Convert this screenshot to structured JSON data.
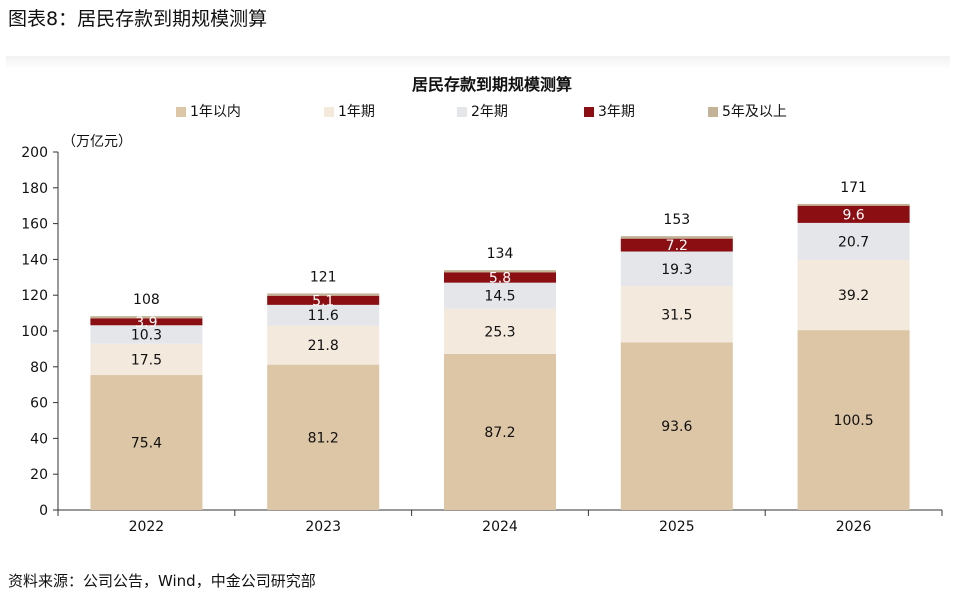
{
  "caption": "图表8：居民存款到期规模测算",
  "source": "资料来源：公司公告，Wind，中金公司研究部",
  "chart_data": {
    "type": "bar",
    "stacked": true,
    "title": "居民存款到期规模测算",
    "unit_label": "（万亿元）",
    "categories": [
      "2022",
      "2023",
      "2024",
      "2025",
      "2026"
    ],
    "ylim": [
      0,
      200
    ],
    "yticks": [
      0,
      20,
      40,
      60,
      80,
      100,
      120,
      140,
      160,
      180,
      200
    ],
    "legend_position": "top",
    "series": [
      {
        "name": "1年以内",
        "color": "#ddc6a6",
        "values": [
          75.4,
          81.2,
          87.2,
          93.6,
          100.5
        ]
      },
      {
        "name": "1年期",
        "color": "#f3e9dd",
        "values": [
          17.5,
          21.8,
          25.3,
          31.5,
          39.2
        ]
      },
      {
        "name": "2年期",
        "color": "#e4e6ea",
        "values": [
          10.3,
          11.6,
          14.5,
          19.3,
          20.7
        ]
      },
      {
        "name": "3年期",
        "color": "#8a0e12",
        "values": [
          3.9,
          5.1,
          5.8,
          7.2,
          9.6
        ]
      },
      {
        "name": "5年及以上",
        "color": "#c3b396",
        "values": [
          1.2,
          1.3,
          1.2,
          1.4,
          1.0
        ]
      }
    ],
    "totals": [
      108,
      121,
      134,
      153,
      171
    ]
  }
}
